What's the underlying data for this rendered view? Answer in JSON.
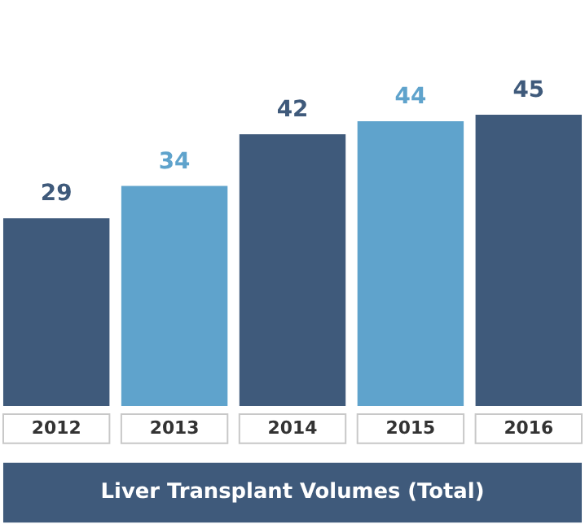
{
  "chart_data": {
    "type": "bar",
    "title": "Liver Transplant Volumes (Total)",
    "categories": [
      "2012",
      "2013",
      "2014",
      "2015",
      "2016"
    ],
    "values": [
      29,
      34,
      42,
      44,
      45
    ],
    "colors": [
      "#3f5a7b",
      "#5fa3cc",
      "#3f5a7b",
      "#5fa3cc",
      "#3f5a7b"
    ],
    "data_labels": true
  }
}
